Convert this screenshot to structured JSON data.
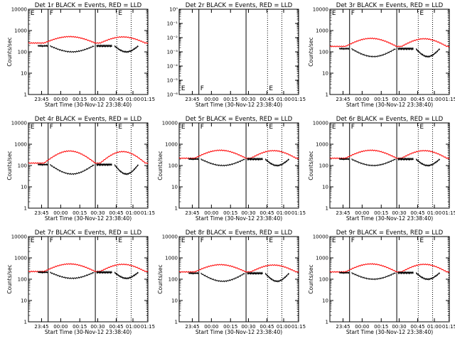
{
  "chart_data": [
    {
      "type": "line",
      "title": "Det 1r BLACK = Events, RED = LLD",
      "xlabel": "Start Time (30-Nov-12 23:38:40)",
      "ylabel": "Counts/sec",
      "yscale": "log",
      "ylim": [
        1,
        10000
      ],
      "y_ticks": [
        "1",
        "10",
        "100",
        "1000",
        "10000"
      ],
      "x_ticks": [
        "23:45",
        "00:00",
        "00:15",
        "00:30",
        "00:45",
        "01:00",
        "01:15"
      ],
      "markers": [
        "E",
        "F",
        "E"
      ],
      "red": {
        "base": 260,
        "peak": 520
      },
      "black": {
        "base": 190,
        "dip": 100
      }
    },
    {
      "type": "line",
      "title": "Det 2r BLACK = Events, RED = LLD",
      "xlabel": "Start Time (30-Nov-12 23:38:40)",
      "ylabel": "",
      "yscale": "log",
      "ylim": [
        0.9,
        1e-06
      ],
      "y_ticks": [
        "10⁻⁶",
        "10⁻⁵",
        "10⁻⁴",
        "10⁻³",
        "10⁻²",
        "10⁻¹",
        "10⁰"
      ],
      "x_ticks": [
        "23:45",
        "00:00",
        "00:15",
        "00:30",
        "00:45",
        "01:00",
        "01:15"
      ],
      "markers": [
        "E",
        "F",
        "E"
      ],
      "red": null,
      "black": null
    },
    {
      "type": "line",
      "title": "Det 3r BLACK = Events, RED = LLD",
      "xlabel": "Start Time (30-Nov-12 23:38:40)",
      "ylabel": "Counts/sec",
      "yscale": "log",
      "ylim": [
        1,
        10000
      ],
      "y_ticks": [
        "1",
        "10",
        "100",
        "1000",
        "10000"
      ],
      "x_ticks": [
        "23:45",
        "00:00",
        "00:15",
        "00:30",
        "00:45",
        "01:00",
        "01:15"
      ],
      "markers": [
        "E",
        "F",
        "E"
      ],
      "red": {
        "base": 180,
        "peak": 430
      },
      "black": {
        "base": 140,
        "dip": 60
      }
    },
    {
      "type": "line",
      "title": "Det 4r BLACK = Events, RED = LLD",
      "xlabel": "Start Time (30-Nov-12 23:38:40)",
      "ylabel": "Counts/sec",
      "yscale": "log",
      "ylim": [
        1,
        10000
      ],
      "y_ticks": [
        "1",
        "10",
        "100",
        "1000",
        "10000"
      ],
      "x_ticks": [
        "23:45",
        "00:00",
        "00:15",
        "00:30",
        "00:45",
        "01:00",
        "01:15"
      ],
      "markers": [
        "E",
        "F",
        "E"
      ],
      "red": {
        "base": 130,
        "peak": 480
      },
      "black": {
        "base": 110,
        "dip": 40
      }
    },
    {
      "type": "line",
      "title": "Det 5r BLACK = Events, RED = LLD",
      "xlabel": "Start Time (30-Nov-12 23:38:40)",
      "ylabel": "Counts/sec",
      "yscale": "log",
      "ylim": [
        1,
        10000
      ],
      "y_ticks": [
        "1",
        "10",
        "100",
        "1000",
        "10000"
      ],
      "x_ticks": [
        "23:45",
        "00:00",
        "00:15",
        "00:30",
        "00:45",
        "01:00",
        "01:15"
      ],
      "markers": [
        "E",
        "F",
        "E"
      ],
      "red": {
        "base": 220,
        "peak": 520
      },
      "black": {
        "base": 200,
        "dip": 100
      }
    },
    {
      "type": "line",
      "title": "Det 6r BLACK = Events, RED = LLD",
      "xlabel": "Start Time (30-Nov-12 23:38:40)",
      "ylabel": "Counts/sec",
      "yscale": "log",
      "ylim": [
        1,
        10000
      ],
      "y_ticks": [
        "1",
        "10",
        "100",
        "1000",
        "10000"
      ],
      "x_ticks": [
        "23:45",
        "00:00",
        "00:15",
        "00:30",
        "00:45",
        "01:00",
        "01:15"
      ],
      "markers": [
        "E",
        "F",
        "E"
      ],
      "red": {
        "base": 220,
        "peak": 520
      },
      "black": {
        "base": 200,
        "dip": 100
      }
    },
    {
      "type": "line",
      "title": "Det 7r BLACK = Events, RED = LLD",
      "xlabel": "Start Time (30-Nov-12 23:38:40)",
      "ylabel": "Counts/sec",
      "yscale": "log",
      "ylim": [
        1,
        10000
      ],
      "y_ticks": [
        "1",
        "10",
        "100",
        "1000",
        "10000"
      ],
      "x_ticks": [
        "23:45",
        "00:00",
        "00:15",
        "00:30",
        "00:45",
        "01:00",
        "01:15"
      ],
      "markers": [
        "E",
        "F",
        "E"
      ],
      "red": {
        "base": 230,
        "peak": 520
      },
      "black": {
        "base": 210,
        "dip": 110
      }
    },
    {
      "type": "line",
      "title": "Det 8r BLACK = Events, RED = LLD",
      "xlabel": "Start Time (30-Nov-12 23:38:40)",
      "ylabel": "Counts/sec",
      "yscale": "log",
      "ylim": [
        1,
        10000
      ],
      "y_ticks": [
        "1",
        "10",
        "100",
        "1000",
        "10000"
      ],
      "x_ticks": [
        "23:45",
        "00:00",
        "00:15",
        "00:30",
        "00:45",
        "01:00",
        "01:15"
      ],
      "markers": [
        "E",
        "F",
        "E"
      ],
      "red": {
        "base": 220,
        "peak": 480
      },
      "black": {
        "base": 190,
        "dip": 80
      }
    },
    {
      "type": "line",
      "title": "Det 9r BLACK = Events, RED = LLD",
      "xlabel": "Start Time (30-Nov-12 23:38:40)",
      "ylabel": "Counts/sec",
      "yscale": "log",
      "ylim": [
        1,
        10000
      ],
      "y_ticks": [
        "1",
        "10",
        "100",
        "1000",
        "10000"
      ],
      "x_ticks": [
        "23:45",
        "00:00",
        "00:15",
        "00:30",
        "00:45",
        "01:00",
        "01:15"
      ],
      "markers": [
        "E",
        "F",
        "E"
      ],
      "red": {
        "base": 220,
        "peak": 520
      },
      "black": {
        "base": 200,
        "dip": 100
      }
    }
  ],
  "colors": {
    "events": "#000000",
    "lld": "#ff0000",
    "axis": "#000000",
    "background": "#ffffff"
  }
}
